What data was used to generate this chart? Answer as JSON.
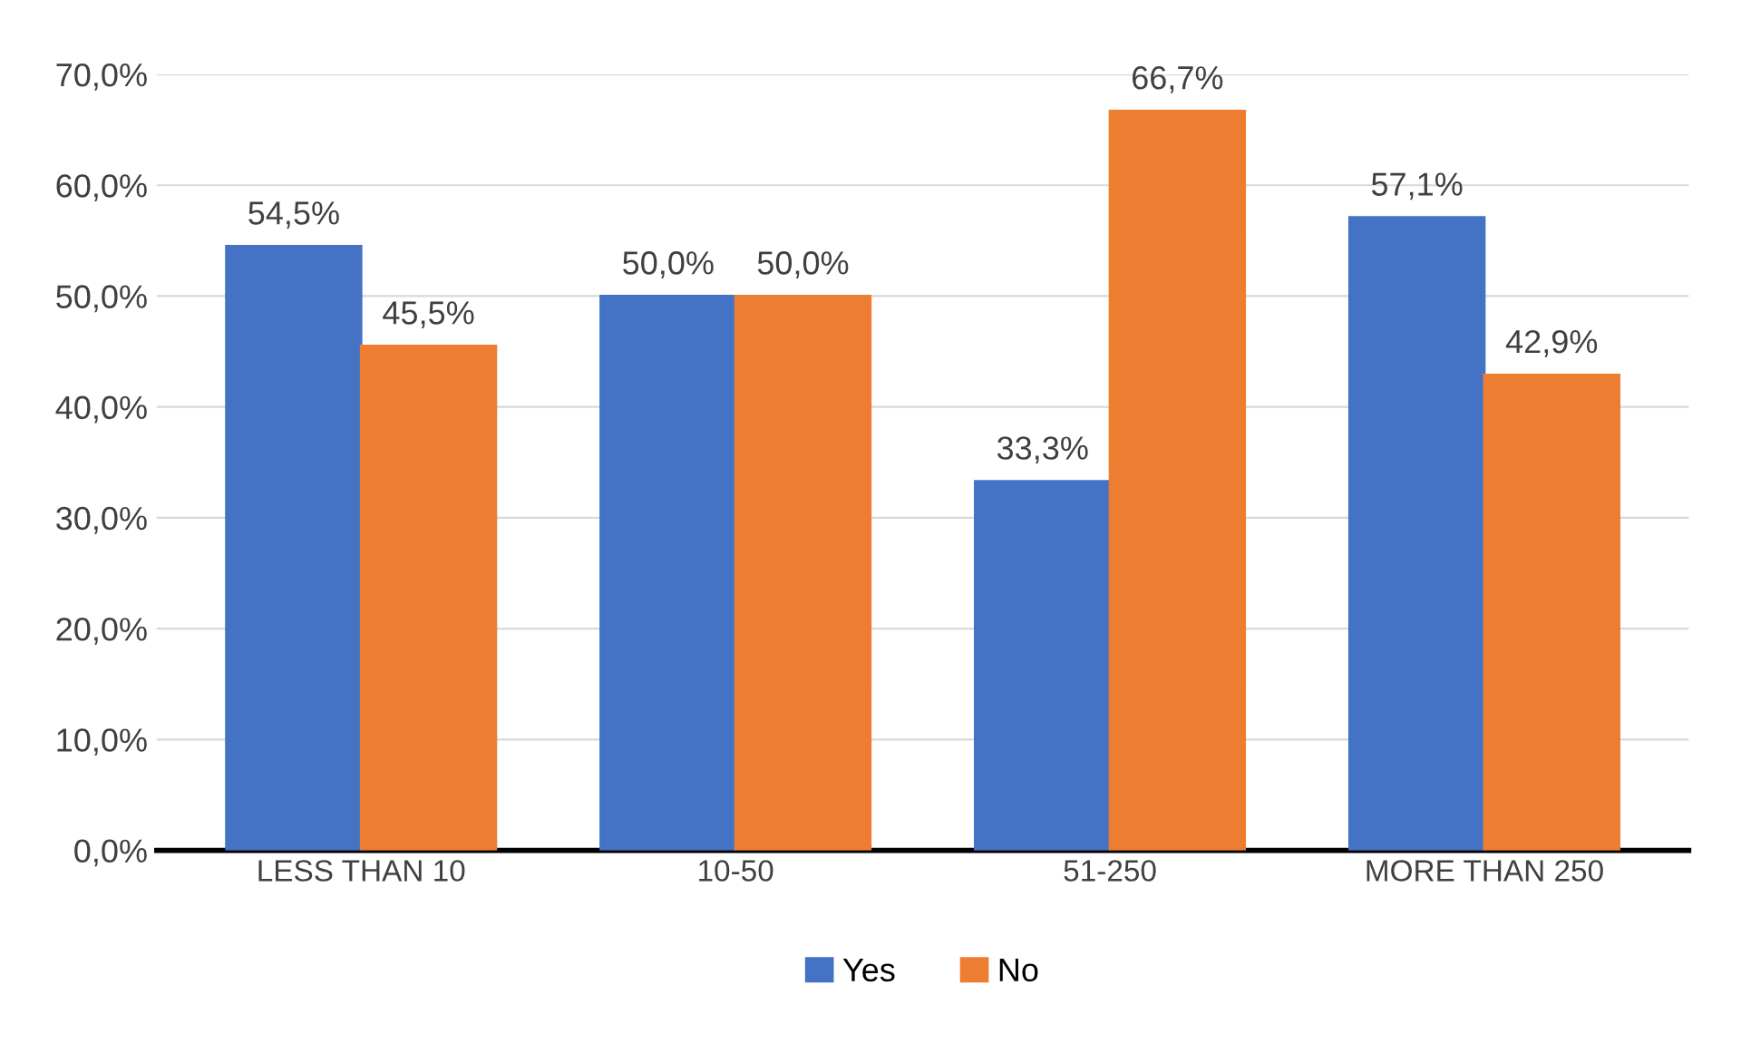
{
  "chart_data": {
    "type": "bar",
    "categories": [
      "LESS THAN 10",
      "10-50",
      "51-250",
      "MORE THAN 250"
    ],
    "series": [
      {
        "name": "Yes",
        "color": "#4472c4",
        "values": [
          54.5,
          50.0,
          33.3,
          57.1
        ],
        "value_labels": [
          "54,5%",
          "50,0%",
          "33,3%",
          "57,1%"
        ]
      },
      {
        "name": "No",
        "color": "#ed7d31",
        "values": [
          45.5,
          50.0,
          66.7,
          42.9
        ],
        "value_labels": [
          "45,5%",
          "50,0%",
          "66,7%",
          "42,9%"
        ]
      }
    ],
    "ylim": [
      0,
      70
    ],
    "yticks": [
      {
        "value": 0,
        "label": "0,0%"
      },
      {
        "value": 10,
        "label": "10,0%"
      },
      {
        "value": 20,
        "label": "20,0%"
      },
      {
        "value": 30,
        "label": "30,0%"
      },
      {
        "value": 40,
        "label": "40,0%"
      },
      {
        "value": 50,
        "label": "50,0%"
      },
      {
        "value": 60,
        "label": "60,0%"
      },
      {
        "value": 70,
        "label": "70,0%"
      }
    ],
    "grid": "y",
    "legend": "bottom"
  }
}
